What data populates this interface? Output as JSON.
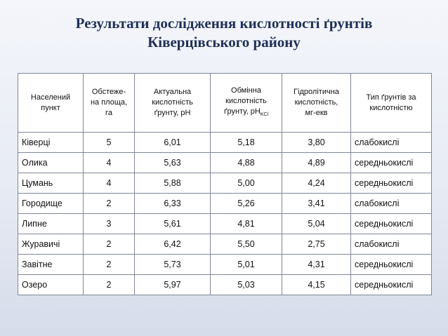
{
  "title": {
    "line1": "Результати дослідження кислотності ґрунтів",
    "line2": "Ківерцівського району"
  },
  "table": {
    "headers": [
      {
        "l1": "Населений",
        "l2": "пункт",
        "l3": "",
        "l4": ""
      },
      {
        "l1": "Обстеже-",
        "l2": "на площа,",
        "l3": "га",
        "l4": ""
      },
      {
        "l1": "Актуальна",
        "l2": "кислотність",
        "l3": "ґрунту, рН",
        "l4": ""
      },
      {
        "l1": "Обмінна",
        "l2": "кислотність",
        "l3": "ґрунту, рН",
        "l4": "KCl"
      },
      {
        "l1": "Гідролітична",
        "l2": "кислотність,",
        "l3": "мг-екв",
        "l4": ""
      },
      {
        "l1": "Тип ґрунтів за",
        "l2": "кислотністю",
        "l3": "",
        "l4": ""
      }
    ],
    "rows": [
      [
        "Ківерці",
        "5",
        "6,01",
        "5,18",
        "3,80",
        "слабокислі"
      ],
      [
        "Олика",
        "4",
        "5,63",
        "4,88",
        "4,89",
        "середньокислі"
      ],
      [
        "Цумань",
        "4",
        "5,88",
        "5,00",
        "4,24",
        "середньокислі"
      ],
      [
        "Городище",
        "2",
        "6,33",
        "5,26",
        "3,41",
        "слабокислі"
      ],
      [
        "Липне",
        "3",
        "5,61",
        "4,81",
        "5,04",
        "середньокислі"
      ],
      [
        "Журавичі",
        "2",
        "6,42",
        "5,50",
        "2,75",
        "слабокислі"
      ],
      [
        "Завітне",
        "2",
        "5,73",
        "5,01",
        "4,31",
        "середньокислі"
      ],
      [
        "Озеро",
        "2",
        "5,97",
        "5,03",
        "4,15",
        "середньокислі"
      ]
    ]
  }
}
